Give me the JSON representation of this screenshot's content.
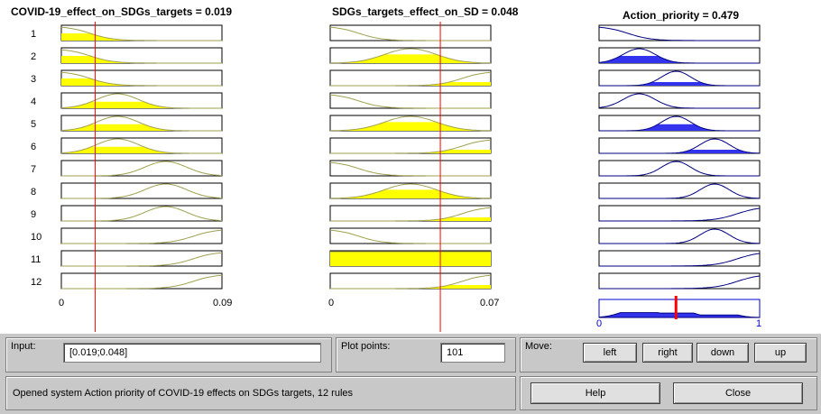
{
  "plots": {
    "input1": {
      "title": "COVID-19_effect_on_SDGs_targets = 0.019",
      "min_label": "0",
      "max_label": "0.09",
      "value": 0.019,
      "range": [
        0,
        0.09
      ]
    },
    "input2": {
      "title": "SDGs_targets_effect_on_SD = 0.048",
      "min_label": "0",
      "max_label": "0.07",
      "value": 0.048,
      "range": [
        0,
        0.07
      ]
    },
    "output": {
      "title": "Action_priority = 0.479",
      "min_label": "0",
      "max_label": "1",
      "value": 0.479,
      "range": [
        0,
        1
      ]
    },
    "rule_numbers": [
      "1",
      "2",
      "3",
      "4",
      "5",
      "6",
      "7",
      "8",
      "9",
      "10",
      "11",
      "12"
    ],
    "colors": {
      "input_fill": "#ffff00",
      "input_curve": "#a0a050",
      "output_fill": "#3333ee",
      "output_curve": "#000080",
      "cursor": "#ff0000"
    }
  },
  "controls": {
    "input_label": "Input:",
    "input_value": "[0.019;0.048]",
    "plot_points_label": "Plot points:",
    "plot_points_value": "101",
    "move_label": "Move:",
    "move_buttons": [
      "left",
      "right",
      "down",
      "up"
    ],
    "status": "Opened system Action priority of COVID-19 effects on SDGs targets, 12 rules",
    "help_label": "Help",
    "close_label": "Close"
  }
}
